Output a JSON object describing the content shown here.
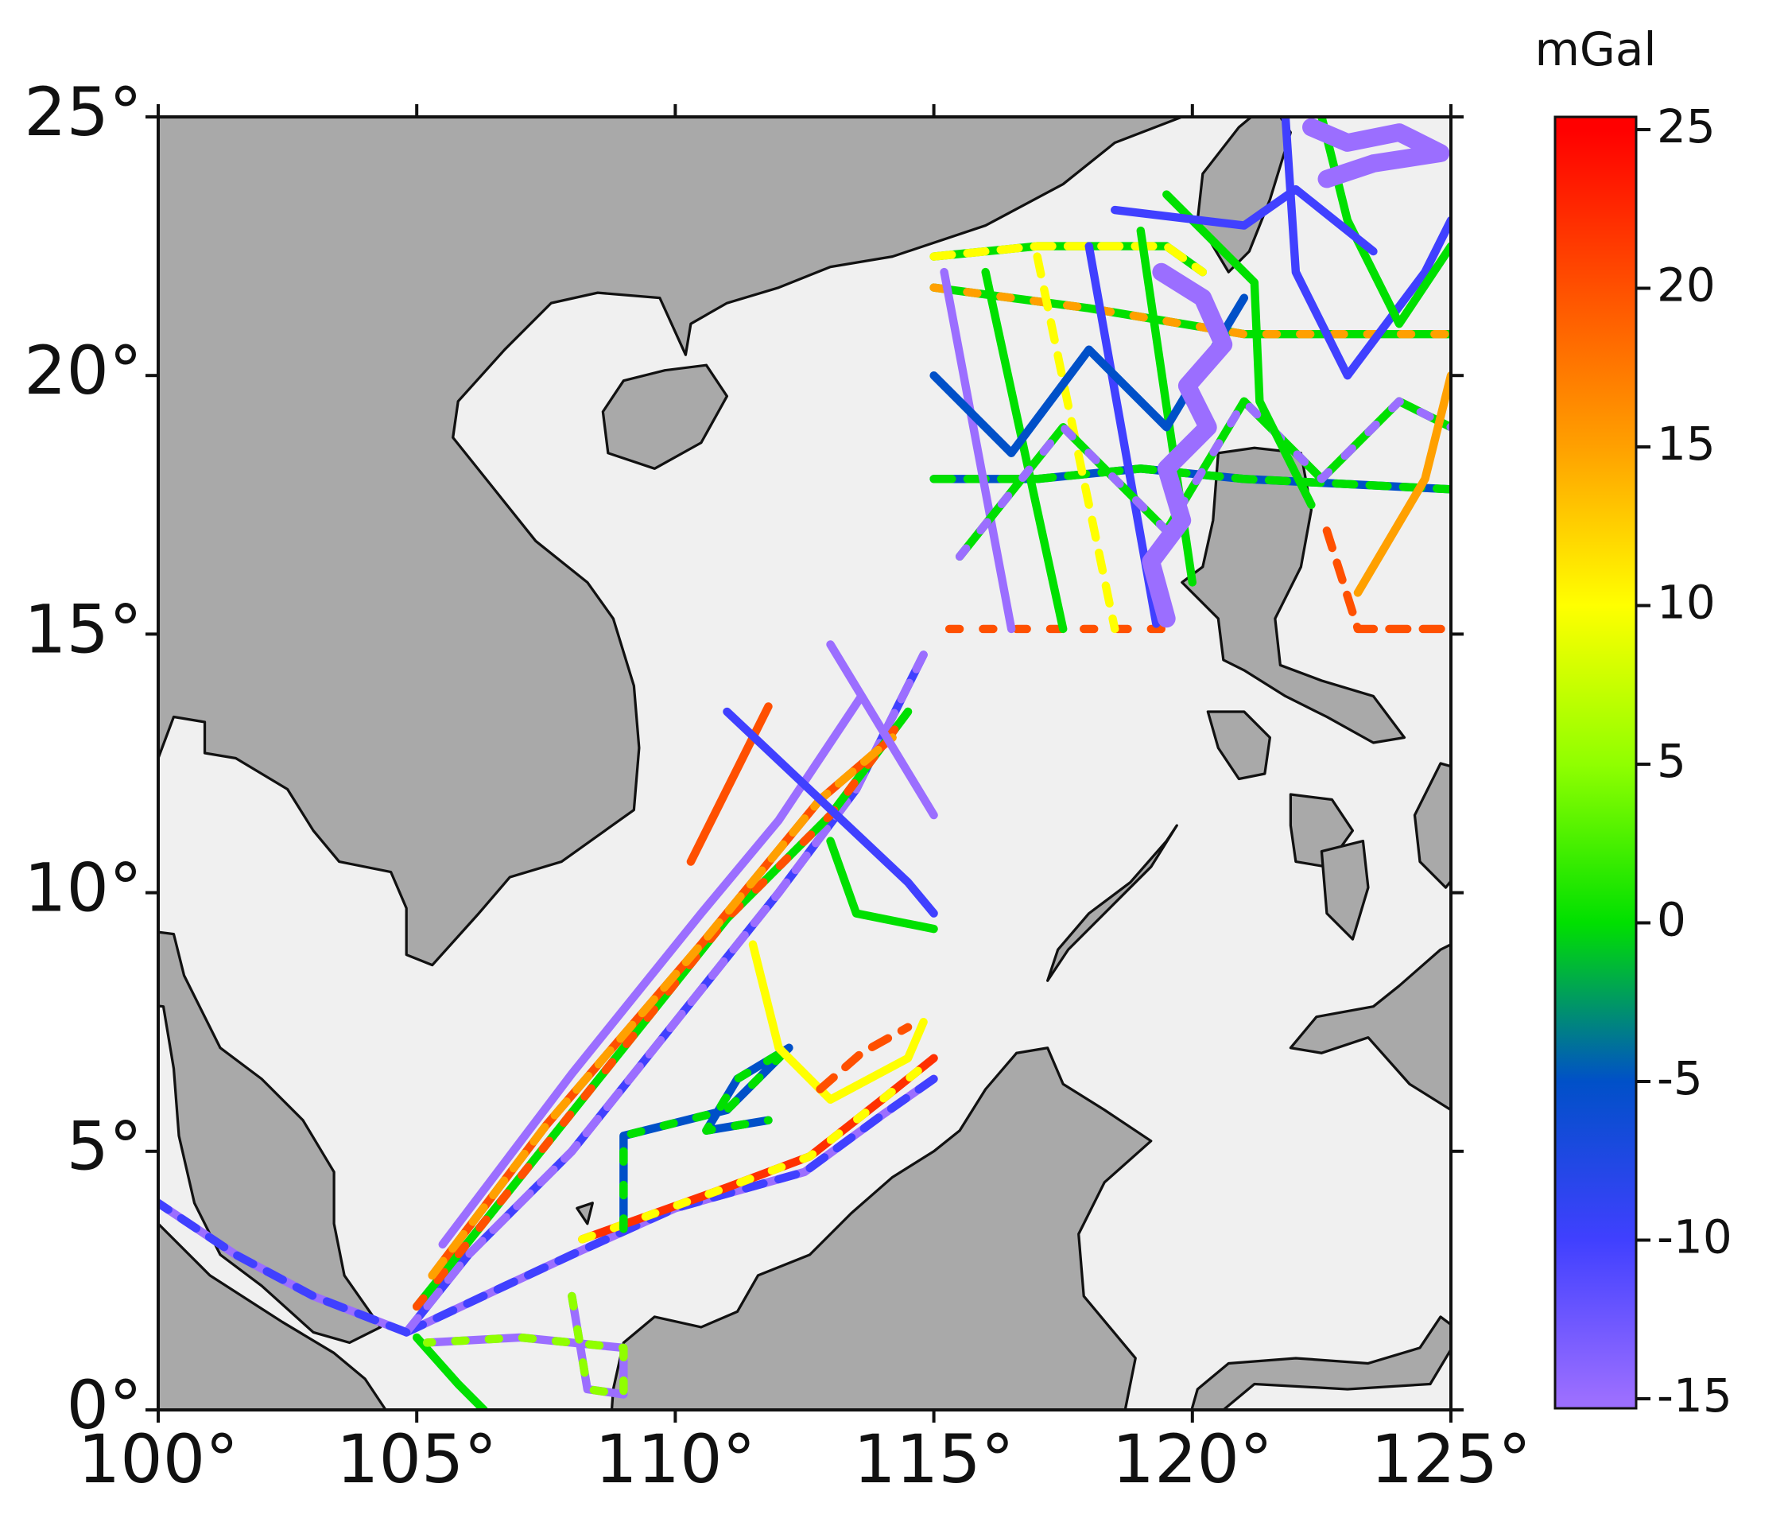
{
  "chart_data": {
    "type": "map",
    "xlim": [
      100,
      125
    ],
    "ylim": [
      0,
      25
    ],
    "xticks": [
      {
        "value": 100,
        "label": "100°"
      },
      {
        "value": 105,
        "label": "105°"
      },
      {
        "value": 110,
        "label": "110°"
      },
      {
        "value": 115,
        "label": "115°"
      },
      {
        "value": 120,
        "label": "120°"
      },
      {
        "value": 125,
        "label": "125°"
      }
    ],
    "yticks": [
      {
        "value": 0,
        "label": "0°"
      },
      {
        "value": 5,
        "label": "5°"
      },
      {
        "value": 10,
        "label": "10°"
      },
      {
        "value": 15,
        "label": "15°"
      },
      {
        "value": 20,
        "label": "20°"
      },
      {
        "value": 25,
        "label": "25°"
      }
    ],
    "land_color": "#a9a9a9",
    "sea_color": "#f0f0f0",
    "colorbar": {
      "label": "mGal",
      "lim": [
        -15.3,
        25.4
      ],
      "ticks": [
        -15,
        -10,
        -5,
        0,
        5,
        10,
        15,
        20,
        25
      ],
      "colors": [
        "#9b6eff",
        "#4040ff",
        "#0050c8",
        "#00e000",
        "#90ff00",
        "#ffff00",
        "#ffa000",
        "#ff5000",
        "#ff0000"
      ]
    }
  }
}
